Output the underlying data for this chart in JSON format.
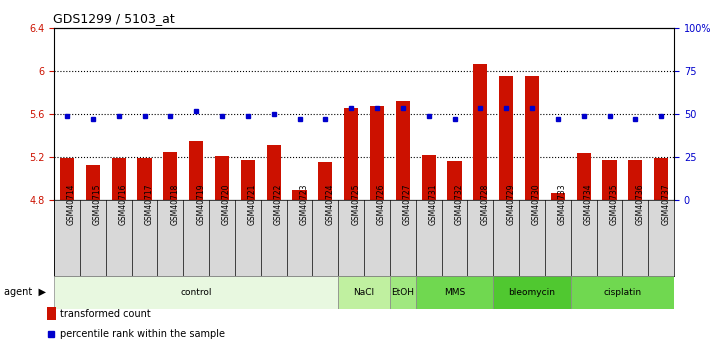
{
  "title": "GDS1299 / 5103_at",
  "samples": [
    "GSM40714",
    "GSM40715",
    "GSM40716",
    "GSM40717",
    "GSM40718",
    "GSM40719",
    "GSM40720",
    "GSM40721",
    "GSM40722",
    "GSM40723",
    "GSM40724",
    "GSM40725",
    "GSM40726",
    "GSM40727",
    "GSM40731",
    "GSM40732",
    "GSM40728",
    "GSM40729",
    "GSM40730",
    "GSM40733",
    "GSM40734",
    "GSM40735",
    "GSM40736",
    "GSM40737"
  ],
  "bar_values": [
    5.19,
    5.13,
    5.19,
    5.19,
    5.25,
    5.35,
    5.21,
    5.17,
    5.31,
    4.89,
    5.15,
    5.65,
    5.67,
    5.72,
    5.22,
    5.16,
    6.06,
    5.95,
    5.95,
    4.87,
    5.24,
    5.17,
    5.17,
    5.19
  ],
  "percentile_values": [
    5.58,
    5.55,
    5.58,
    5.58,
    5.58,
    5.63,
    5.58,
    5.58,
    5.6,
    5.55,
    5.55,
    5.65,
    5.65,
    5.65,
    5.58,
    5.55,
    5.65,
    5.65,
    5.65,
    5.55,
    5.58,
    5.58,
    5.55,
    5.58
  ],
  "agents": [
    {
      "label": "control",
      "start": 0,
      "end": 11
    },
    {
      "label": "NaCl",
      "start": 11,
      "end": 13
    },
    {
      "label": "EtOH",
      "start": 13,
      "end": 14
    },
    {
      "label": "MMS",
      "start": 14,
      "end": 17
    },
    {
      "label": "bleomycin",
      "start": 17,
      "end": 20
    },
    {
      "label": "cisplatin",
      "start": 20,
      "end": 24
    }
  ],
  "agent_colors": [
    "#e8f8e0",
    "#c0f0a0",
    "#a0e880",
    "#70d850",
    "#50c830",
    "#70d850"
  ],
  "ylim_left": [
    4.8,
    6.4
  ],
  "yticks_left": [
    4.8,
    5.2,
    5.6,
    6.0,
    6.4
  ],
  "ytick_labels_left": [
    "4.8",
    "5.2",
    "5.6",
    "6",
    "6.4"
  ],
  "ytick_labels_right": [
    "0",
    "25",
    "50",
    "75",
    "100%"
  ],
  "yticks_right": [
    0,
    25,
    50,
    75,
    100
  ],
  "hlines": [
    5.2,
    5.6,
    6.0
  ],
  "bar_color": "#cc1100",
  "percentile_color": "#0000cc",
  "bar_width": 0.55,
  "background_color": "#ffffff"
}
